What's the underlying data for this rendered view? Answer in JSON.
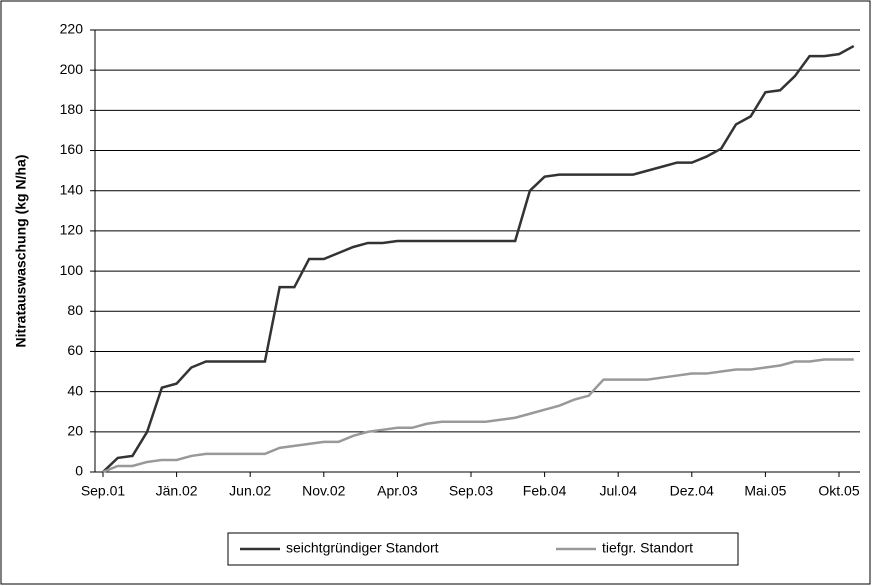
{
  "chart_data": {
    "type": "line",
    "y_label": "Nitratauswaschung (kg N/ha)",
    "categories": [
      "Sep.01",
      null,
      null,
      null,
      null,
      "Jän.02",
      null,
      null,
      null,
      null,
      "Jun.02",
      null,
      null,
      null,
      null,
      "Nov.02",
      null,
      null,
      null,
      null,
      "Apr.03",
      null,
      null,
      null,
      null,
      "Sep.03",
      null,
      null,
      null,
      null,
      "Feb.04",
      null,
      null,
      null,
      null,
      "Jul.04",
      null,
      null,
      null,
      null,
      "Dez.04",
      null,
      null,
      null,
      null,
      "Mai.05",
      null,
      null,
      null,
      null,
      "Okt.05",
      null
    ],
    "series": [
      {
        "name": "seichtgründiger Standort",
        "color": "#333333",
        "values": [
          0,
          7,
          8,
          20,
          42,
          44,
          52,
          55,
          55,
          55,
          55,
          55,
          92,
          92,
          106,
          106,
          109,
          112,
          114,
          114,
          115,
          115,
          115,
          115,
          115,
          115,
          115,
          115,
          115,
          140,
          147,
          148,
          148,
          148,
          148,
          148,
          148,
          150,
          152,
          154,
          154,
          157,
          161,
          173,
          177,
          189,
          190,
          197,
          207,
          207,
          208,
          212
        ]
      },
      {
        "name": "tiefgr. Standort",
        "color": "#999999",
        "values": [
          0,
          3,
          3,
          5,
          6,
          6,
          8,
          9,
          9,
          9,
          9,
          9,
          12,
          13,
          14,
          15,
          15,
          18,
          20,
          21,
          22,
          22,
          24,
          25,
          25,
          25,
          25,
          26,
          27,
          29,
          31,
          33,
          36,
          38,
          46,
          46,
          46,
          46,
          47,
          48,
          49,
          49,
          50,
          51,
          51,
          52,
          53,
          55,
          55,
          56,
          56,
          56
        ]
      }
    ],
    "ylim": [
      0,
      220
    ],
    "yticks": [
      0,
      20,
      40,
      60,
      80,
      100,
      120,
      140,
      160,
      180,
      200,
      220
    ],
    "grid": true,
    "legend": "bottom"
  }
}
